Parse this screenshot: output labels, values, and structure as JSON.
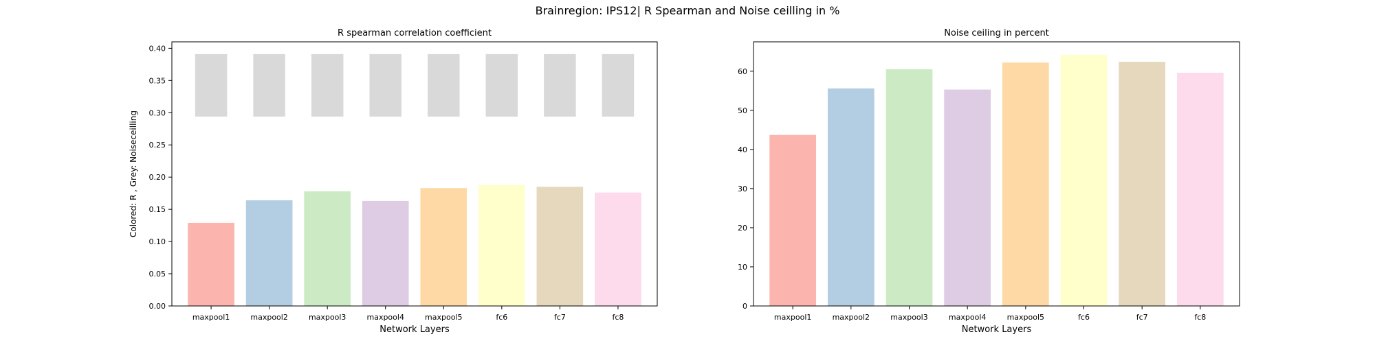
{
  "figure": {
    "suptitle": "Brainregion: IPS12| R Spearman and Noise ceilling in %"
  },
  "chart_data": [
    {
      "type": "bar",
      "title": "R spearman correlation coefficient",
      "xlabel": "Network Layers",
      "ylabel": "Colored: R , Grey: Noiseceilling",
      "categories": [
        "maxpool1",
        "maxpool2",
        "maxpool3",
        "maxpool4",
        "maxpool5",
        "fc6",
        "fc7",
        "fc8"
      ],
      "series": [
        {
          "role": "R",
          "values": [
            0.129,
            0.164,
            0.178,
            0.163,
            0.183,
            0.188,
            0.185,
            0.176
          ]
        }
      ],
      "noise_ceiling_ranges": [
        [
          0.294,
          0.391
        ],
        [
          0.294,
          0.391
        ],
        [
          0.294,
          0.391
        ],
        [
          0.294,
          0.391
        ],
        [
          0.294,
          0.391
        ],
        [
          0.294,
          0.391
        ],
        [
          0.294,
          0.391
        ],
        [
          0.294,
          0.391
        ]
      ],
      "ylim": [
        0,
        0.41
      ],
      "yticks": [
        0.0,
        0.05,
        0.1,
        0.15,
        0.2,
        0.25,
        0.3,
        0.35,
        0.4
      ],
      "ytick_labels": [
        "0.00",
        "0.05",
        "0.10",
        "0.15",
        "0.20",
        "0.25",
        "0.30",
        "0.35",
        "0.40"
      ],
      "grid": false
    },
    {
      "type": "bar",
      "title": "Noise ceiling in percent",
      "xlabel": "Network Layers",
      "ylabel": "",
      "categories": [
        "maxpool1",
        "maxpool2",
        "maxpool3",
        "maxpool4",
        "maxpool5",
        "fc6",
        "fc7",
        "fc8"
      ],
      "series": [
        {
          "values": [
            43.7,
            55.6,
            60.5,
            55.3,
            62.2,
            64.2,
            62.4,
            59.6
          ]
        }
      ],
      "ylim": [
        0,
        67.5
      ],
      "yticks": [
        0,
        10,
        20,
        30,
        40,
        50,
        60
      ],
      "ytick_labels": [
        "0",
        "10",
        "20",
        "30",
        "40",
        "50",
        "60"
      ],
      "grid": false
    }
  ],
  "colors": {
    "bars": [
      "#fbb4ae",
      "#b3cde3",
      "#ccebc5",
      "#decbe4",
      "#fed9a6",
      "#ffffcc",
      "#e5d8bd",
      "#fddaec"
    ],
    "noise_ceiling": "#d9d9d9",
    "axes": "#000000"
  }
}
